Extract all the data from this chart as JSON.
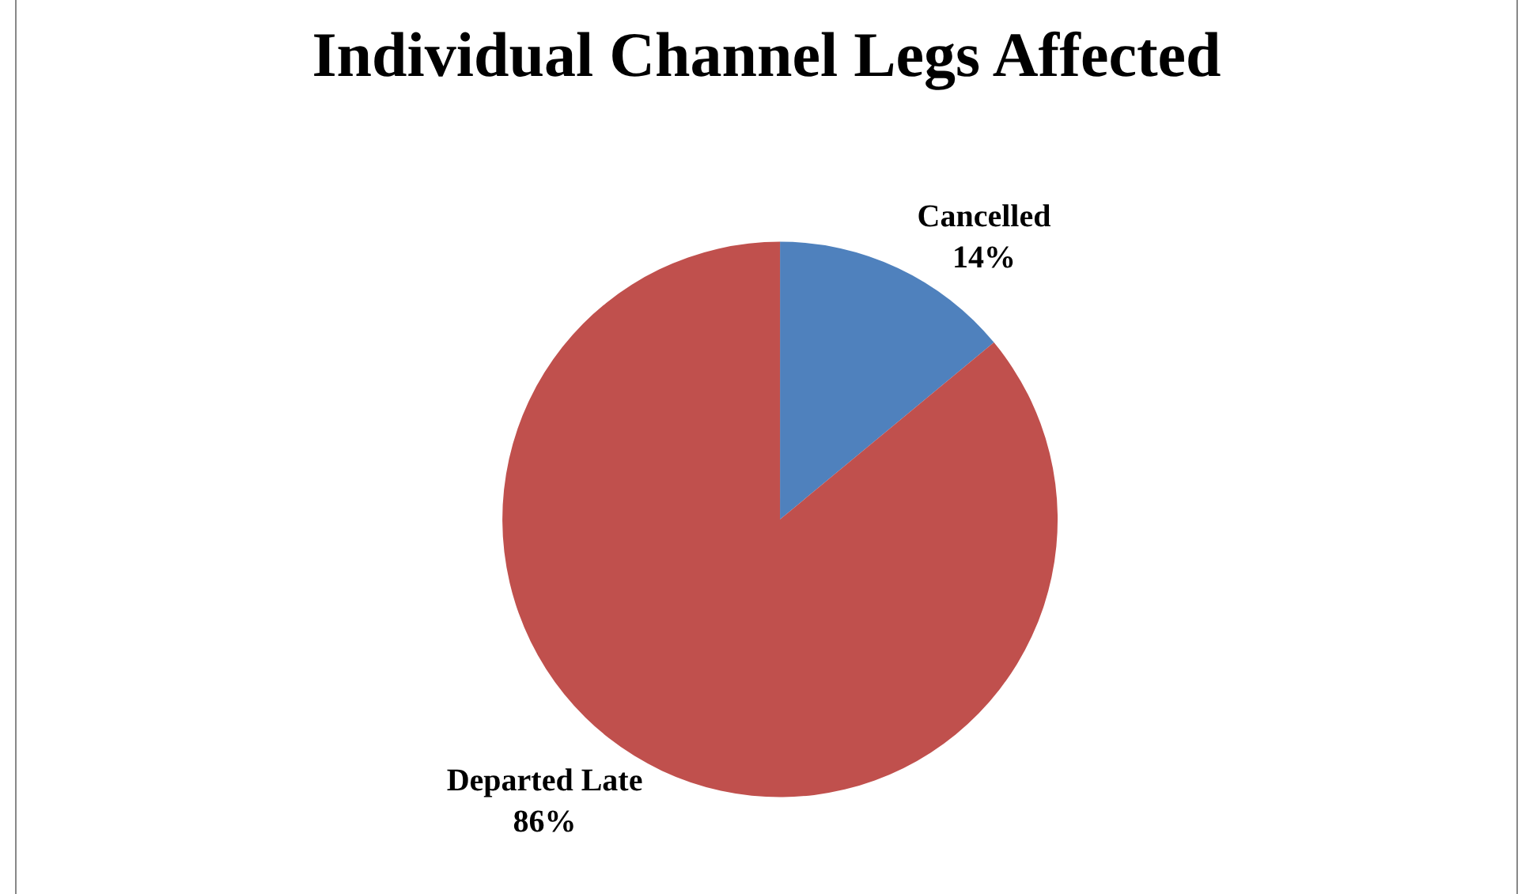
{
  "chart_data": {
    "type": "pie",
    "title": "Individual Channel Legs Affected",
    "categories": [
      "Cancelled",
      "Departed Late"
    ],
    "values": [
      14,
      86
    ],
    "value_labels": [
      "14%",
      "86%"
    ],
    "colors": [
      "#4f81bd",
      "#c0504d"
    ],
    "legend": false
  }
}
